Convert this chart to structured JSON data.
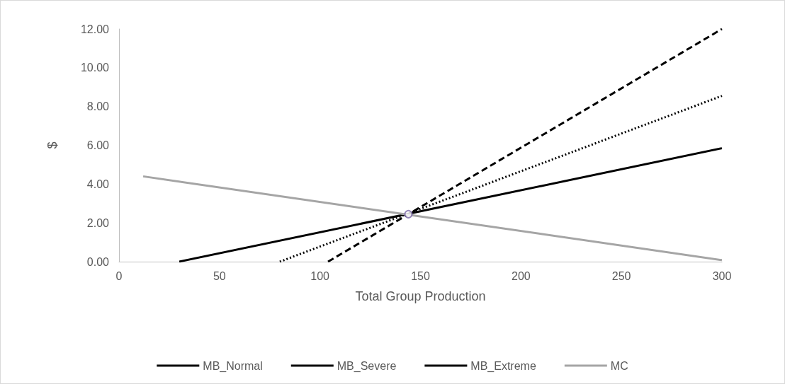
{
  "chart_data": {
    "type": "line",
    "xlabel": "Total Group Production",
    "ylabel": "$",
    "xlim": [
      0,
      300
    ],
    "xticks": [
      0,
      50,
      100,
      150,
      200,
      250,
      300
    ],
    "ylim": [
      0,
      12
    ],
    "yticks": [
      {
        "value": 0,
        "label": "0.00"
      },
      {
        "value": 2,
        "label": "2.00"
      },
      {
        "value": 4,
        "label": "4.00"
      },
      {
        "value": 6,
        "label": "6.00"
      },
      {
        "value": 8,
        "label": "8.00"
      },
      {
        "value": 10,
        "label": "10.00"
      },
      {
        "value": 12,
        "label": "12.00"
      }
    ],
    "grid": false,
    "legend": "bottom",
    "marker": "none",
    "series": [
      {
        "name": "MB_Normal",
        "color": "#000000",
        "line_style": "solid",
        "x": [
          30,
          300
        ],
        "values": [
          0,
          5.85
        ]
      },
      {
        "name": "MB_Severe",
        "color": "#000000",
        "line_style": "dotted",
        "x": [
          80,
          300
        ],
        "values": [
          0,
          8.55
        ]
      },
      {
        "name": "MB_Extreme",
        "color": "#000000",
        "line_style": "dashed",
        "x": [
          104,
          300
        ],
        "values": [
          0,
          12
        ]
      },
      {
        "name": "MC",
        "color": "#a5a5a5",
        "line_style": "solid",
        "x": [
          12,
          300
        ],
        "values": [
          4.4,
          0.08
        ]
      },
      {
        "type": "scatter",
        "marker": "circle",
        "color": "#7a68a6",
        "x": [
          144
        ],
        "values": [
          2.45
        ]
      }
    ]
  }
}
